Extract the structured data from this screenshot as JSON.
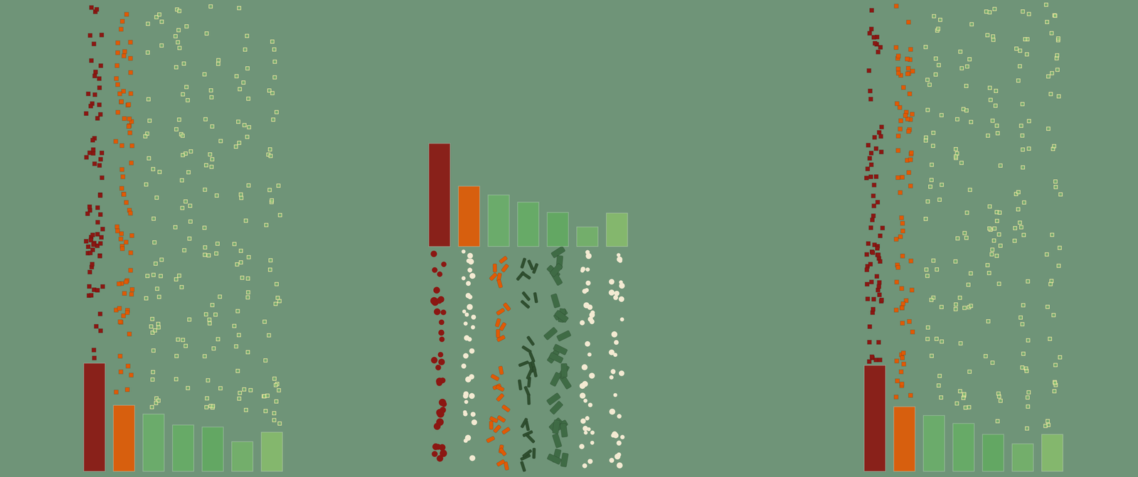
{
  "chart_data": [
    {
      "type": "bar",
      "categories": [
        null,
        null,
        null,
        null,
        null,
        null,
        null
      ],
      "values": [
        150,
        92,
        80,
        65,
        62,
        42,
        55
      ],
      "colors": [
        "#8b1712",
        "#e05a05",
        "#6aad6a",
        "#66ab66",
        "#62a862",
        "#73b06a",
        "#85ba6c"
      ],
      "ylim": [
        0,
        300
      ],
      "grid": false,
      "tick_labels": false
    },
    {
      "type": "bar",
      "categories": [
        null,
        null,
        null,
        null,
        null,
        null,
        null
      ],
      "values": [
        143,
        84,
        72,
        62,
        48,
        28,
        47
      ],
      "colors": [
        "#8b1712",
        "#e05a05",
        "#6aad6a",
        "#66ab66",
        "#62a862",
        "#73b06a",
        "#85ba6c"
      ],
      "ylim": [
        0,
        300
      ],
      "grid": false,
      "tick_labels": false
    },
    {
      "type": "bar",
      "categories": [
        null,
        null,
        null,
        null,
        null,
        null,
        null
      ],
      "values": [
        147,
        90,
        78,
        67,
        52,
        39,
        52
      ],
      "colors": [
        "#8b1712",
        "#e05a05",
        "#6aad6a",
        "#66ab66",
        "#62a862",
        "#73b06a",
        "#85ba6c"
      ],
      "ylim": [
        0,
        300
      ],
      "grid": false,
      "tick_labels": false
    }
  ]
}
